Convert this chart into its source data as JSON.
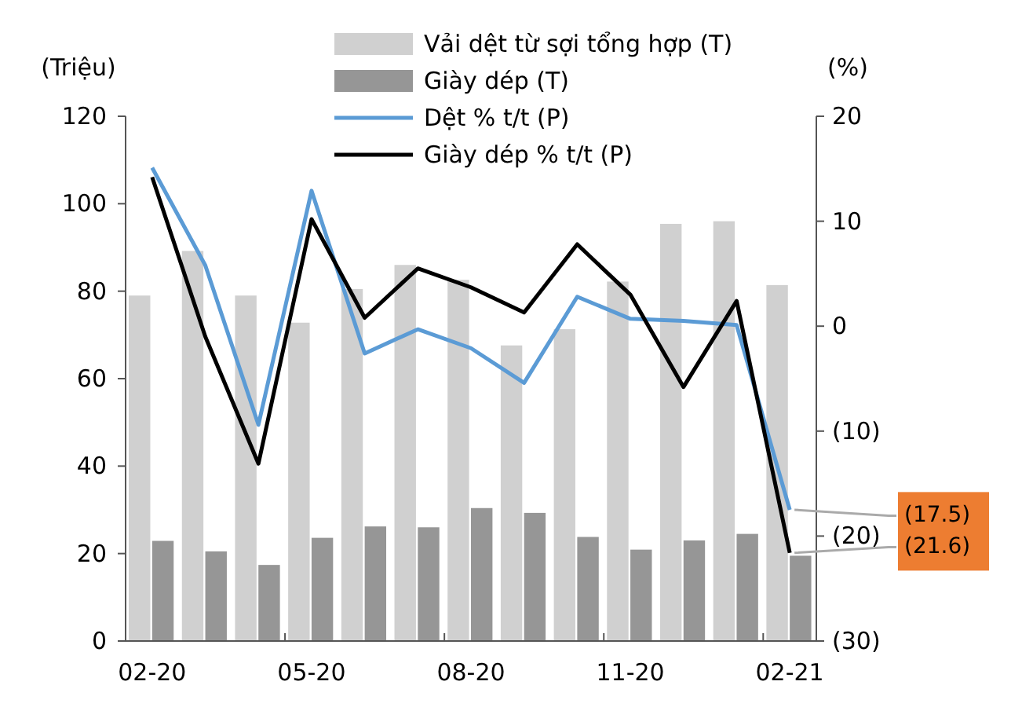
{
  "chart_data": {
    "type": "bar",
    "ylabel": "(Triệu)",
    "y2label": "(%)",
    "categories": [
      "02-20",
      null,
      null,
      "05-20",
      null,
      null,
      "08-20",
      null,
      null,
      "11-20",
      null,
      null,
      "02-21"
    ],
    "series": [
      {
        "name": "Vải dệt từ sợi tổng hợp (T)",
        "color": "#d0d0d0",
        "values": [
          79,
          89.2,
          79,
          72.8,
          80.5,
          86,
          82.6,
          67.6,
          71.3,
          82.2,
          95.4,
          96,
          81.4
        ]
      },
      {
        "name": "Giày dép (T)",
        "color": "#969696",
        "values": [
          22.9,
          20.5,
          17.4,
          23.6,
          26.2,
          26,
          30.4,
          29.3,
          23.8,
          20.9,
          23,
          24.5,
          19.5
        ]
      },
      {
        "name": "Dệt % t/t (P)",
        "type": "line",
        "axis": "y2",
        "color": "#5b9bd5",
        "values": [
          15.1,
          5.8,
          -9.4,
          12.9,
          -2.6,
          -0.3,
          -2.1,
          -5.4,
          2.8,
          0.7,
          0.5,
          0.1,
          -17.5
        ],
        "value_labels": [
          null,
          null,
          null,
          null,
          null,
          null,
          null,
          null,
          null,
          null,
          null,
          null,
          "(17.5)"
        ]
      },
      {
        "name": "Giày dép % t/t (P)",
        "type": "line",
        "axis": "y2",
        "color": "#000000",
        "values": [
          14.2,
          -1.0,
          -13.1,
          10.2,
          0.8,
          5.5,
          3.7,
          1.3,
          7.8,
          3.0,
          -5.8,
          2.4,
          -21.6
        ],
        "value_labels": [
          null,
          null,
          null,
          null,
          null,
          null,
          null,
          null,
          null,
          null,
          null,
          null,
          "(21.6)"
        ]
      }
    ],
    "ylim": [
      0,
      120
    ],
    "yticks": [
      0,
      20,
      40,
      60,
      80,
      100,
      120
    ],
    "y2lim": [
      -30,
      20
    ],
    "y2ticks": [
      {
        "value": -30,
        "label": "(30)"
      },
      {
        "value": -20,
        "label": "(20)"
      },
      {
        "value": -10,
        "label": "(10)"
      },
      0,
      10,
      20
    ],
    "legend": "top",
    "marker": "none",
    "line_style": "solid",
    "grid": false
  }
}
